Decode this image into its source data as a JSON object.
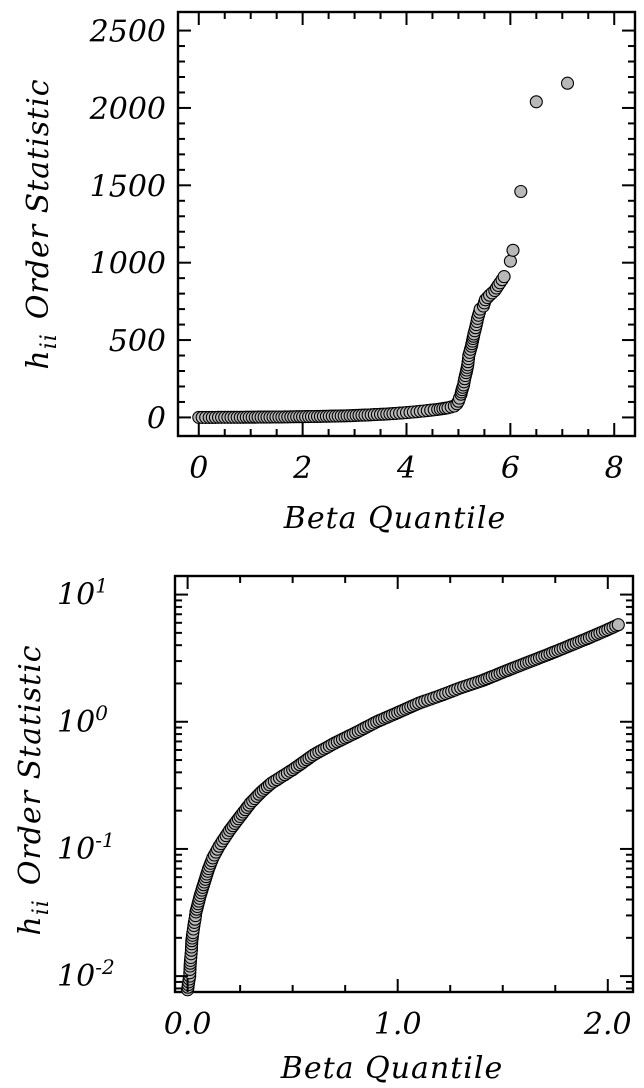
{
  "chart_data": [
    {
      "type": "scatter",
      "xlabel": "Beta Quantile",
      "ylabel_main": "h",
      "ylabel_sub": "ii",
      "ylabel_rest": "Order Statistic",
      "xlim": [
        -0.4,
        8.4
      ],
      "ylim": [
        -120,
        2620
      ],
      "yscale": "linear",
      "xticks": [
        0,
        2,
        4,
        6,
        8
      ],
      "xtick_labels": [
        "0",
        "2",
        "4",
        "6",
        "8"
      ],
      "yticks": [
        0,
        500,
        1000,
        1500,
        2000,
        2500
      ],
      "ytick_labels": [
        "0",
        "500",
        "1000",
        "1500",
        "2000",
        "2500"
      ],
      "grid": false,
      "marker_color": "#b8b8b8",
      "points": [
        [
          0.0,
          0
        ],
        [
          0.2,
          0
        ],
        [
          0.5,
          1
        ],
        [
          0.8,
          1
        ],
        [
          1.2,
          2
        ],
        [
          1.6,
          3
        ],
        [
          2.0,
          5
        ],
        [
          2.4,
          7
        ],
        [
          2.8,
          10
        ],
        [
          3.2,
          15
        ],
        [
          3.5,
          20
        ],
        [
          3.8,
          26
        ],
        [
          4.0,
          31
        ],
        [
          4.2,
          37
        ],
        [
          4.4,
          44
        ],
        [
          4.6,
          52
        ],
        [
          4.8,
          62
        ],
        [
          4.92,
          74
        ],
        [
          4.97,
          88
        ],
        [
          5.0,
          105
        ],
        [
          5.02,
          125
        ],
        [
          5.05,
          150
        ],
        [
          5.07,
          180
        ],
        [
          5.1,
          210
        ],
        [
          5.12,
          250
        ],
        [
          5.15,
          290
        ],
        [
          5.18,
          340
        ],
        [
          5.2,
          400
        ],
        [
          5.25,
          460
        ],
        [
          5.28,
          510
        ],
        [
          5.3,
          540
        ],
        [
          5.33,
          580
        ],
        [
          5.37,
          640
        ],
        [
          5.42,
          700
        ],
        [
          5.48,
          720
        ],
        [
          5.52,
          760
        ],
        [
          5.6,
          790
        ],
        [
          5.7,
          820
        ],
        [
          5.8,
          870
        ],
        [
          5.88,
          910
        ],
        [
          6.0,
          1010
        ],
        [
          6.05,
          1080
        ],
        [
          6.2,
          1460
        ],
        [
          6.5,
          2040
        ],
        [
          7.1,
          2160
        ]
      ]
    },
    {
      "type": "scatter",
      "xlabel": "Beta Quantile",
      "ylabel_main": "h",
      "ylabel_sub": "ii",
      "ylabel_rest": "Order Statistic",
      "xlim": [
        -0.06,
        2.12
      ],
      "ylim": [
        0.0075,
        14
      ],
      "yscale": "log",
      "xticks": [
        0.0,
        1.0,
        2.0
      ],
      "xtick_labels": [
        "0.0",
        "1.0",
        "2.0"
      ],
      "yticks": [
        0.01,
        0.1,
        1,
        10
      ],
      "ytick_labels": [
        {
          "base": "10",
          "exp": "-2"
        },
        {
          "base": "10",
          "exp": "-1"
        },
        {
          "base": "10",
          "exp": "0"
        },
        {
          "base": "10",
          "exp": "1"
        }
      ],
      "grid": false,
      "marker_color": "#b8b8b8",
      "points": [
        [
          0.0,
          0.0078
        ],
        [
          0.005,
          0.009
        ],
        [
          0.01,
          0.01
        ],
        [
          0.012,
          0.012
        ],
        [
          0.015,
          0.014
        ],
        [
          0.018,
          0.016
        ],
        [
          0.02,
          0.019
        ],
        [
          0.025,
          0.022
        ],
        [
          0.03,
          0.025
        ],
        [
          0.035,
          0.028
        ],
        [
          0.04,
          0.032
        ],
        [
          0.05,
          0.037
        ],
        [
          0.06,
          0.043
        ],
        [
          0.08,
          0.055
        ],
        [
          0.1,
          0.07
        ],
        [
          0.12,
          0.085
        ],
        [
          0.15,
          0.105
        ],
        [
          0.2,
          0.14
        ],
        [
          0.25,
          0.18
        ],
        [
          0.3,
          0.23
        ],
        [
          0.35,
          0.28
        ],
        [
          0.4,
          0.33
        ],
        [
          0.5,
          0.42
        ],
        [
          0.6,
          0.55
        ],
        [
          0.7,
          0.68
        ],
        [
          0.8,
          0.82
        ],
        [
          0.9,
          1.0
        ],
        [
          1.0,
          1.18
        ],
        [
          1.1,
          1.4
        ],
        [
          1.2,
          1.6
        ],
        [
          1.3,
          1.85
        ],
        [
          1.4,
          2.1
        ],
        [
          1.5,
          2.45
        ],
        [
          1.6,
          2.85
        ],
        [
          1.7,
          3.3
        ],
        [
          1.8,
          3.85
        ],
        [
          1.9,
          4.5
        ],
        [
          2.0,
          5.3
        ],
        [
          2.05,
          5.8
        ]
      ]
    }
  ]
}
